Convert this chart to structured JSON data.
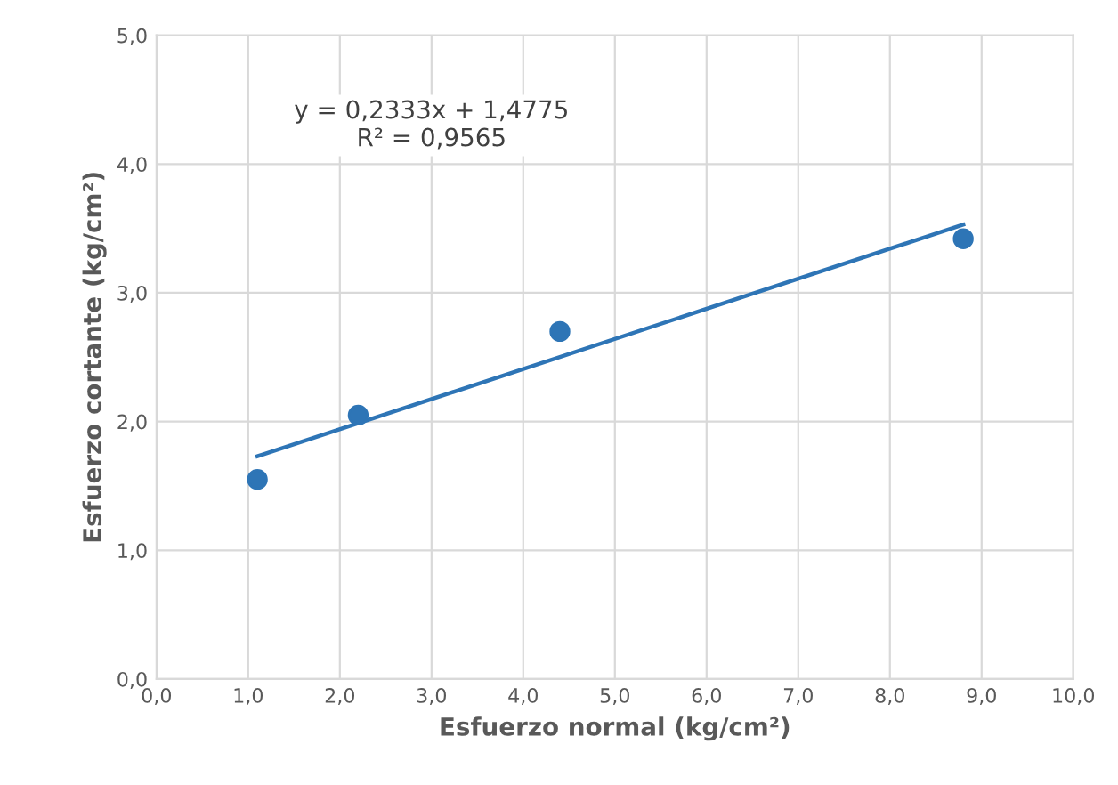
{
  "chart_data": {
    "type": "scatter",
    "xlabel": "Esfuerzo normal (kg/cm²)",
    "ylabel": "Esfuerzo cortante (kg/cm²)",
    "x": [
      1.1,
      2.2,
      4.4,
      8.8
    ],
    "series": [
      {
        "color": "#2e75b6",
        "marker": "circle",
        "values": [
          1.55,
          2.05,
          2.7,
          3.42
        ]
      },
      {
        "type": "line",
        "color": "#2e75b6",
        "marker": "none",
        "line_style": "solid",
        "x": [
          1.1,
          8.8
        ],
        "values": [
          1.73,
          3.53
        ]
      }
    ],
    "grid": true,
    "xlim": [
      0,
      10
    ],
    "ylim": [
      0,
      5
    ],
    "xticks": [
      {
        "value": 0,
        "label": "0,0"
      },
      {
        "value": 1,
        "label": "1,0"
      },
      {
        "value": 2,
        "label": "2,0"
      },
      {
        "value": 3,
        "label": "3,0"
      },
      {
        "value": 4,
        "label": "4,0"
      },
      {
        "value": 5,
        "label": "5,0"
      },
      {
        "value": 6,
        "label": "6,0"
      },
      {
        "value": 7,
        "label": "7,0"
      },
      {
        "value": 8,
        "label": "8,0"
      },
      {
        "value": 9,
        "label": "9,0"
      },
      {
        "value": 10,
        "label": "10,0"
      }
    ],
    "yticks": [
      {
        "value": 0,
        "label": "0,0"
      },
      {
        "value": 1,
        "label": "1,0"
      },
      {
        "value": 2,
        "label": "2,0"
      },
      {
        "value": 3,
        "label": "3,0"
      },
      {
        "value": 4,
        "label": "4,0"
      },
      {
        "value": 5,
        "label": "5,0"
      }
    ],
    "annotations": [
      "y = 0,2333x + 1,4775\nR² = 0,9565"
    ]
  }
}
